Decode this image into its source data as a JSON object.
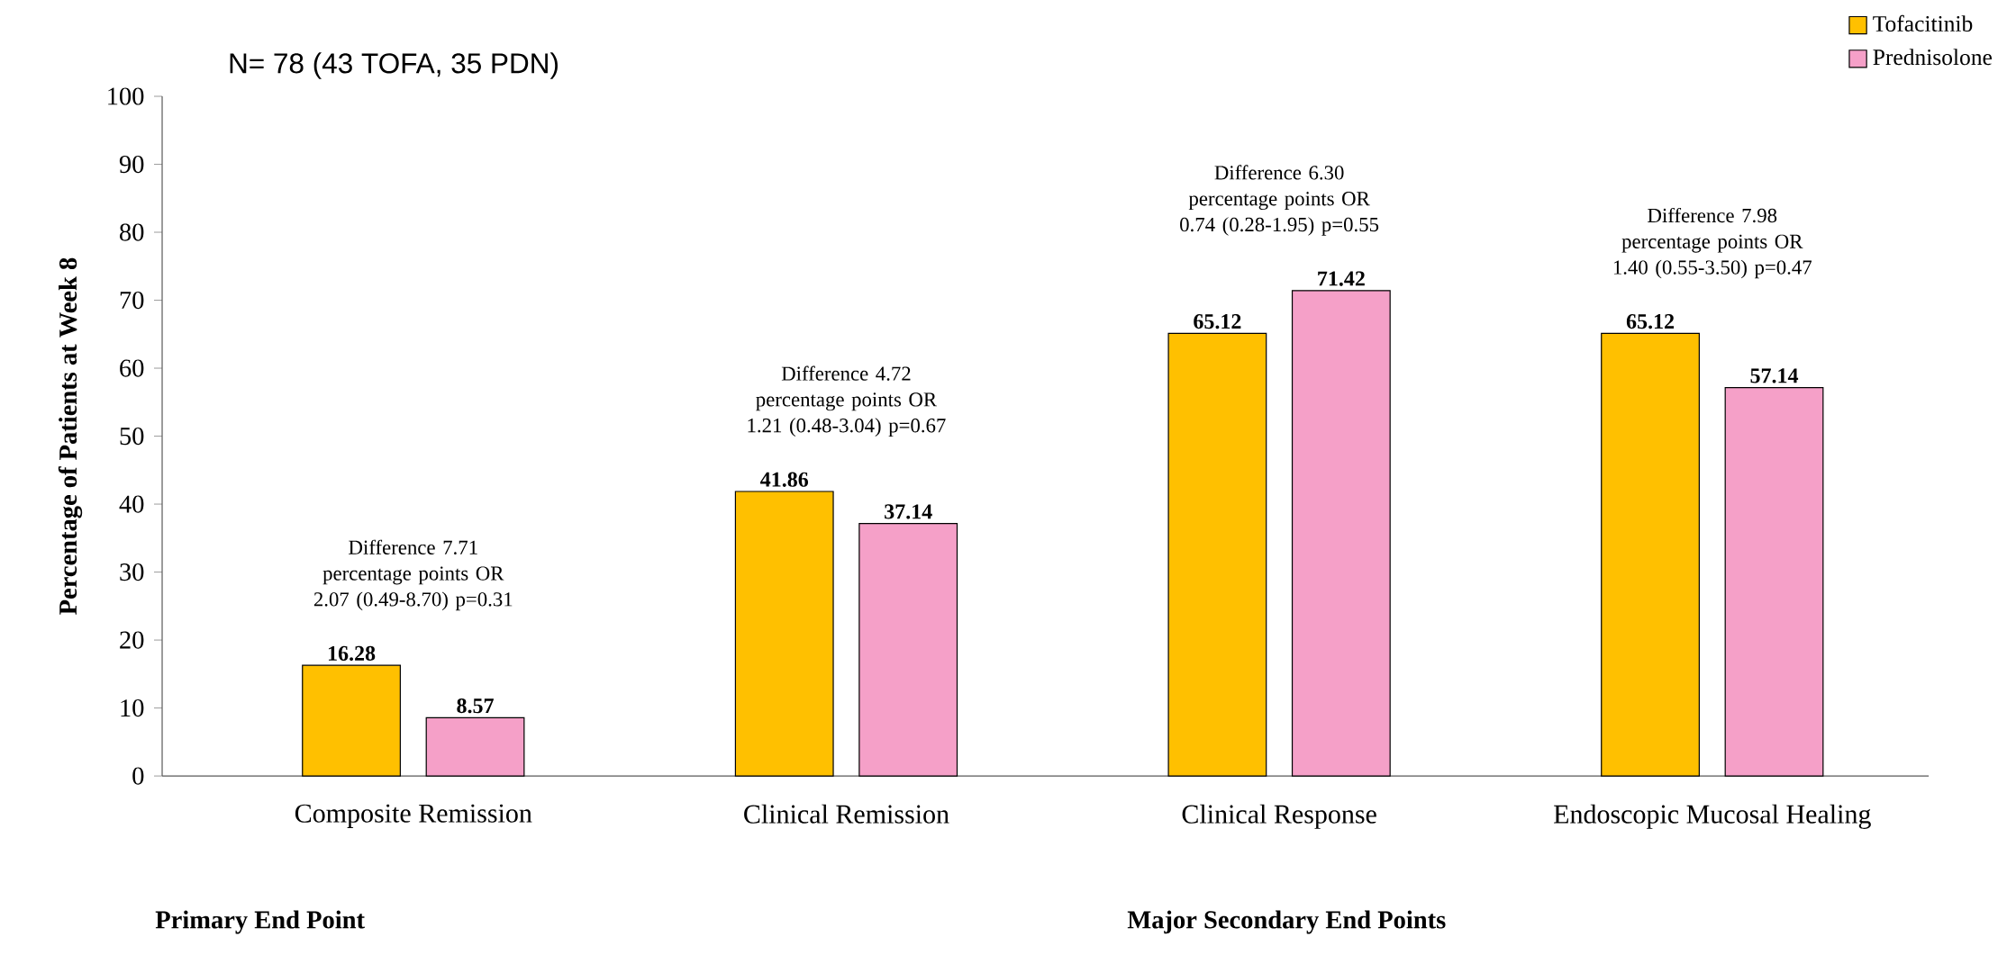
{
  "chart_data": {
    "type": "bar",
    "ylabel": "Percentage of Patients at Week 8",
    "categories": [
      "Composite Remission",
      "Clinical Remission",
      "Clinical Response",
      "Endoscopic Mucosal Healing"
    ],
    "series": [
      {
        "name": "Tofacitinib",
        "color": "#ffc000",
        "values": [
          16.28,
          41.86,
          65.12,
          65.12
        ],
        "value_labels": [
          "16.28",
          "41.86",
          "65.12",
          "65.12"
        ]
      },
      {
        "name": "Prednisolone",
        "color": "#f5a0c8",
        "values": [
          8.57,
          37.14,
          71.42,
          57.14
        ],
        "value_labels": [
          "8.57",
          "37.14",
          "71.42",
          "57.14"
        ]
      }
    ],
    "ylim": [
      0,
      100
    ],
    "yticks": [
      0,
      10,
      20,
      30,
      40,
      50,
      60,
      70,
      80,
      90,
      100
    ],
    "legend": "top right",
    "annotations": [
      "N= 78 (43 TOFA, 35 PDN)",
      "Difference 7.71 percentage points OR 2.07 (0.49-8.70) p=0.31",
      "Difference 4.72 percentage points OR 1.21 (0.48-3.04) p=0.67",
      "Difference 6.30 percentage points OR 0.74 (0.28-1.95) p=0.55",
      "Difference 7.98 percentage points OR 1.40 (0.55-3.50) p=0.47",
      "Primary End Point",
      "Major Secondary End Points"
    ]
  }
}
